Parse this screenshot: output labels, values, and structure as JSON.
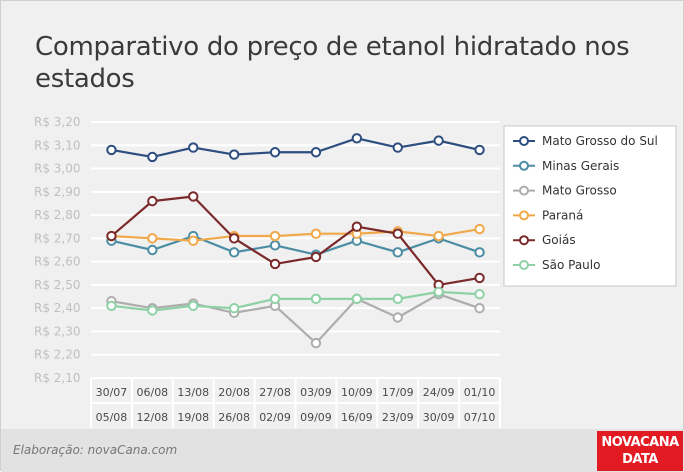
{
  "title": "Comparativo do preço de etanol hidratado nos estados",
  "footer": {
    "credit": "Elaboração: novaCana.com"
  },
  "logo": {
    "line1": "NOVACANA",
    "line2": "DATA"
  },
  "colors": {
    "background": "#f0f0f0",
    "grid": "#ffffff",
    "axis_text": "#c0c0c0",
    "logo_red": "#e21b23"
  },
  "chart_data": {
    "type": "line",
    "title": "Comparativo do preço de etanol hidratado nos estados",
    "xlabel": "",
    "ylabel": "",
    "ylim": [
      2.1,
      3.2
    ],
    "yticks": [
      "R$ 3,20",
      "R$ 3,10",
      "R$ 3,00",
      "R$ 2,90",
      "R$ 2,80",
      "R$ 2,70",
      "R$ 2,60",
      "R$ 2,50",
      "R$ 2,40",
      "R$ 2,30",
      "R$ 2,20",
      "R$ 2,10"
    ],
    "ytick_values": [
      3.2,
      3.1,
      3.0,
      2.9,
      2.8,
      2.7,
      2.6,
      2.5,
      2.4,
      2.3,
      2.2,
      2.1
    ],
    "categories_start": [
      "30/07",
      "06/08",
      "13/08",
      "20/08",
      "27/08",
      "03/09",
      "10/09",
      "17/09",
      "24/09",
      "01/10"
    ],
    "categories_end": [
      "05/08",
      "12/08",
      "19/08",
      "26/08",
      "02/09",
      "09/09",
      "16/09",
      "23/09",
      "30/09",
      "07/10"
    ],
    "legend_position": "right",
    "grid": true,
    "series": [
      {
        "name": "Mato Grosso do Sul",
        "color": "#2d4e7e",
        "values": [
          3.08,
          3.05,
          3.09,
          3.06,
          3.07,
          3.07,
          3.13,
          3.09,
          3.12,
          3.08
        ]
      },
      {
        "name": "Minas Gerais",
        "color": "#4b8da3",
        "values": [
          2.69,
          2.65,
          2.71,
          2.64,
          2.67,
          2.63,
          2.69,
          2.64,
          2.7,
          2.64
        ]
      },
      {
        "name": "Mato Grosso",
        "color": "#adadad",
        "values": [
          2.43,
          2.4,
          2.42,
          2.38,
          2.41,
          2.25,
          2.44,
          2.36,
          2.46,
          2.4
        ]
      },
      {
        "name": "Paraná",
        "color": "#f0a848",
        "values": [
          2.71,
          2.7,
          2.69,
          2.71,
          2.71,
          2.72,
          2.72,
          2.73,
          2.71,
          2.74
        ]
      },
      {
        "name": "Goiás",
        "color": "#7a2a2a",
        "values": [
          2.71,
          2.86,
          2.88,
          2.7,
          2.59,
          2.62,
          2.75,
          2.72,
          2.5,
          2.53
        ]
      },
      {
        "name": "São Paulo",
        "color": "#8fd1a6",
        "values": [
          2.41,
          2.39,
          2.41,
          2.4,
          2.44,
          2.44,
          2.44,
          2.44,
          2.47,
          2.46
        ]
      }
    ]
  }
}
